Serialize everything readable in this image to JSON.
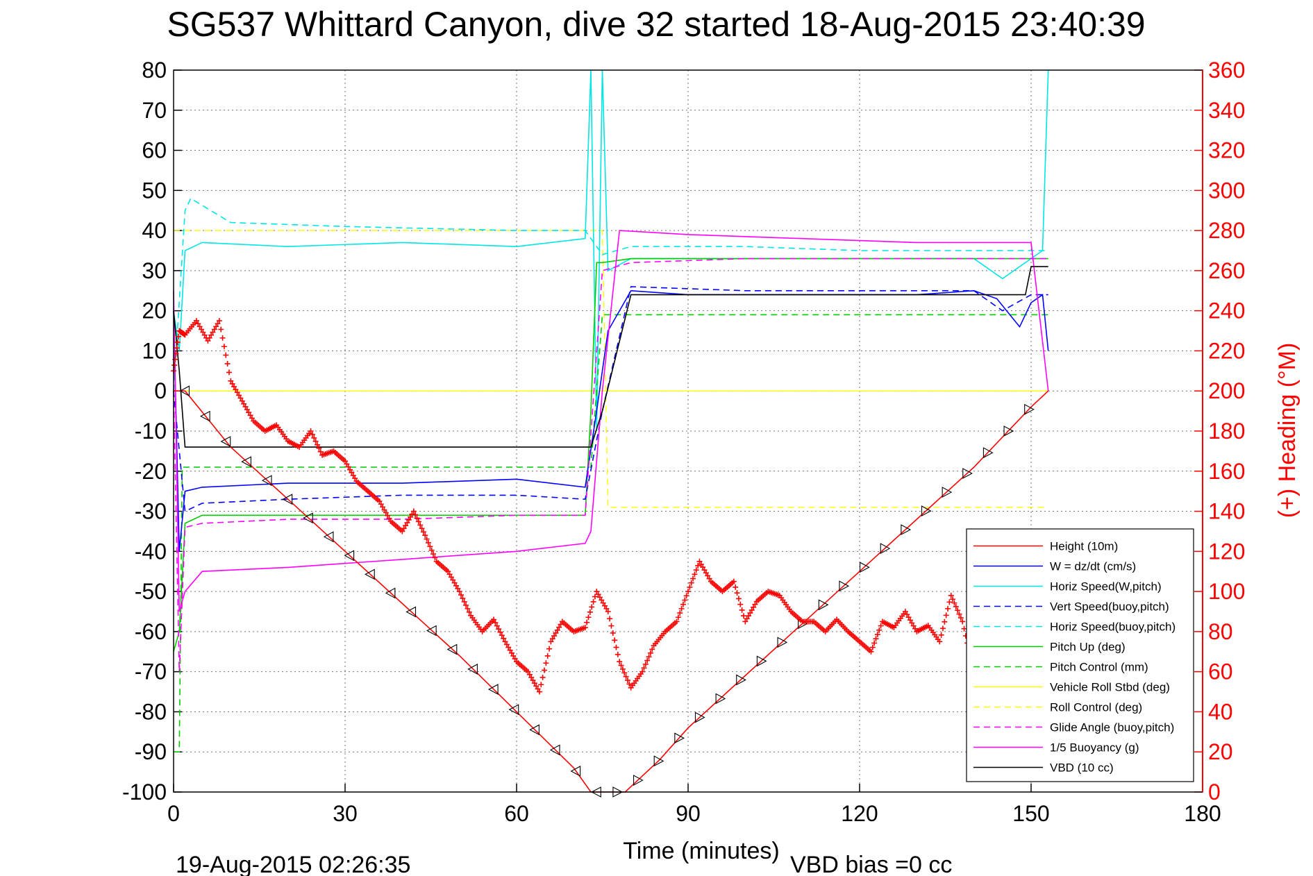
{
  "chart_data": {
    "type": "line",
    "title": "SG537 Whittard Canyon, dive 32 started 18-Aug-2015 23:40:39",
    "xlabel": "Time (minutes)",
    "ylabel_right": "(+) Heading (°M)",
    "footer_date": "19-Aug-2015 02:26:35",
    "footer_bias": "VBD bias =0 cc",
    "xlim": [
      0,
      180
    ],
    "ylim": [
      -100,
      80
    ],
    "ylim_right": [
      0,
      360
    ],
    "x_ticks": [
      "0",
      "30",
      "60",
      "90",
      "120",
      "150",
      "180"
    ],
    "y_ticks": [
      "80",
      "70",
      "60",
      "50",
      "40",
      "30",
      "20",
      "10",
      "0",
      "-10",
      "-20",
      "-30",
      "-40",
      "-50",
      "-60",
      "-70",
      "-80",
      "-90",
      "-100"
    ],
    "y_ticks_right": [
      "360",
      "340",
      "320",
      "300",
      "280",
      "260",
      "240",
      "220",
      "200",
      "180",
      "160",
      "140",
      "120",
      "100",
      "80",
      "60",
      "40",
      "20",
      "0"
    ],
    "grid": true,
    "legend_position": "bottom-right",
    "series": [
      {
        "name": "Height (10m)",
        "color": "#ff0000",
        "style": "solid",
        "marker": "triangle",
        "x": [
          0,
          2,
          10,
          20,
          30,
          40,
          50,
          60,
          65,
          70,
          73,
          75,
          79,
          85,
          90,
          100,
          110,
          120,
          130,
          140,
          150,
          153
        ],
        "y": [
          0,
          0,
          -14,
          -27,
          -40,
          -53,
          -66,
          -80,
          -87,
          -94,
          -100,
          -100,
          -100,
          -92,
          -84,
          -71,
          -58,
          -45,
          -32,
          -19,
          -4,
          0
        ]
      },
      {
        "name": "W = dz/dt (cm/s)",
        "color": "#0000ff",
        "style": "solid",
        "x": [
          0,
          1,
          2,
          5,
          20,
          40,
          60,
          72,
          74,
          76,
          80,
          90,
          110,
          130,
          140,
          144,
          148,
          150,
          152,
          153
        ],
        "y": [
          20,
          -40,
          -25,
          -24,
          -23,
          -23,
          -22,
          -24,
          -5,
          15,
          25,
          24,
          24,
          24,
          25,
          23,
          16,
          22,
          24,
          10
        ]
      },
      {
        "name": "Horiz Speed(W,pitch)",
        "color": "#00e5e5",
        "style": "solid",
        "x": [
          0,
          1,
          2,
          5,
          20,
          40,
          60,
          72,
          73,
          74,
          75,
          76,
          80,
          100,
          120,
          140,
          145,
          150,
          152,
          153
        ],
        "y": [
          20,
          10,
          35,
          37,
          36,
          37,
          36,
          38,
          80,
          -10,
          80,
          30,
          33,
          33,
          33,
          33,
          28,
          33,
          35,
          80
        ]
      },
      {
        "name": "Vert Speed(buoy,pitch)",
        "color": "#0000ff",
        "style": "dashed",
        "x": [
          0,
          2,
          5,
          20,
          40,
          60,
          72,
          75,
          80,
          100,
          120,
          140,
          145,
          150,
          153
        ],
        "y": [
          0,
          -30,
          -28,
          -27,
          -26,
          -26,
          -27,
          -5,
          26,
          25,
          25,
          25,
          20,
          24,
          24
        ]
      },
      {
        "name": "Horiz Speed(buoy,pitch)",
        "color": "#00e5e5",
        "style": "dashed",
        "x": [
          0,
          2,
          3,
          10,
          30,
          60,
          72,
          75,
          80,
          100,
          120,
          140,
          150,
          153
        ],
        "y": [
          0,
          45,
          48,
          42,
          41,
          40,
          40,
          34,
          36,
          36,
          35,
          35,
          35,
          35
        ]
      },
      {
        "name": "Pitch Up (deg)",
        "color": "#00cc00",
        "style": "solid",
        "x": [
          0,
          1,
          2,
          5,
          20,
          40,
          60,
          72,
          73,
          74,
          75,
          80,
          100,
          120,
          140,
          150,
          153
        ],
        "y": [
          -65,
          -60,
          -33,
          -31,
          -31,
          -31,
          -31,
          -31,
          -5,
          32,
          32,
          33,
          33,
          33,
          33,
          33,
          33
        ]
      },
      {
        "name": "Pitch Control (mm)",
        "color": "#00cc00",
        "style": "dashed",
        "x": [
          0,
          1,
          1.5,
          2,
          72,
          73,
          75,
          153
        ],
        "y": [
          -90,
          -90,
          -19,
          -19,
          -19,
          -19,
          19,
          19
        ]
      },
      {
        "name": "Vehicle Roll Stbd (deg)",
        "color": "#ffff00",
        "style": "solid",
        "x": [
          0,
          153
        ],
        "y": [
          0,
          0
        ]
      },
      {
        "name": "Roll Control (deg)",
        "color": "#ffff00",
        "style": "dashed",
        "x": [
          0,
          72,
          75,
          76,
          153
        ],
        "y": [
          40,
          40,
          40,
          -29,
          -29
        ]
      },
      {
        "name": "Glide Angle (buoy,pitch)",
        "color": "#ff00ff",
        "style": "dashed",
        "x": [
          0,
          1,
          2,
          5,
          20,
          40,
          60,
          72,
          75,
          80,
          100,
          120,
          140,
          150,
          153
        ],
        "y": [
          0,
          -70,
          -34,
          -33,
          -32,
          -32,
          -31,
          -31,
          30,
          32,
          33,
          33,
          33,
          33,
          33
        ]
      },
      {
        "name": "1/5 Buoyancy (g)",
        "color": "#ff00ff",
        "style": "solid",
        "x": [
          0,
          1,
          2,
          5,
          20,
          40,
          60,
          72,
          73,
          75,
          78,
          90,
          110,
          130,
          150,
          153
        ],
        "y": [
          25,
          -55,
          -50,
          -45,
          -44,
          -42,
          -40,
          -38,
          -35,
          0,
          40,
          39,
          38,
          37,
          37,
          0
        ]
      },
      {
        "name": "VBD (10 cc)",
        "color": "#000000",
        "style": "solid",
        "x": [
          0,
          1,
          2,
          72,
          73,
          75,
          80,
          143,
          144,
          149,
          150,
          153
        ],
        "y": [
          20,
          5,
          -14,
          -14,
          -14,
          -5,
          24,
          24,
          24,
          24,
          31,
          31
        ]
      }
    ],
    "heading": {
      "name": "(+) Heading (°M)",
      "color": "#ff0000",
      "marker": "plus",
      "axis": "right",
      "x": [
        0,
        1,
        2,
        4,
        6,
        8,
        10,
        12,
        14,
        16,
        18,
        20,
        22,
        24,
        26,
        28,
        30,
        32,
        34,
        36,
        38,
        40,
        42,
        44,
        46,
        48,
        50,
        52,
        54,
        56,
        58,
        60,
        62,
        64,
        66,
        68,
        70,
        72,
        74,
        76,
        78,
        80,
        82,
        84,
        86,
        88,
        90,
        92,
        94,
        96,
        98,
        100,
        102,
        104,
        106,
        108,
        110,
        112,
        114,
        116,
        118,
        120,
        122,
        124,
        126,
        128,
        130,
        132,
        134,
        136,
        138,
        140
      ],
      "y": [
        210,
        230,
        228,
        235,
        225,
        235,
        205,
        195,
        185,
        180,
        183,
        175,
        172,
        180,
        168,
        170,
        165,
        155,
        150,
        145,
        135,
        130,
        140,
        128,
        115,
        110,
        100,
        88,
        80,
        86,
        75,
        65,
        60,
        50,
        75,
        85,
        80,
        82,
        100,
        90,
        65,
        52,
        60,
        73,
        80,
        85,
        100,
        115,
        105,
        100,
        105,
        85,
        95,
        100,
        98,
        90,
        85,
        85,
        80,
        86,
        80,
        75,
        70,
        85,
        82,
        90,
        80,
        83,
        75,
        98,
        85,
        60
      ]
    }
  }
}
